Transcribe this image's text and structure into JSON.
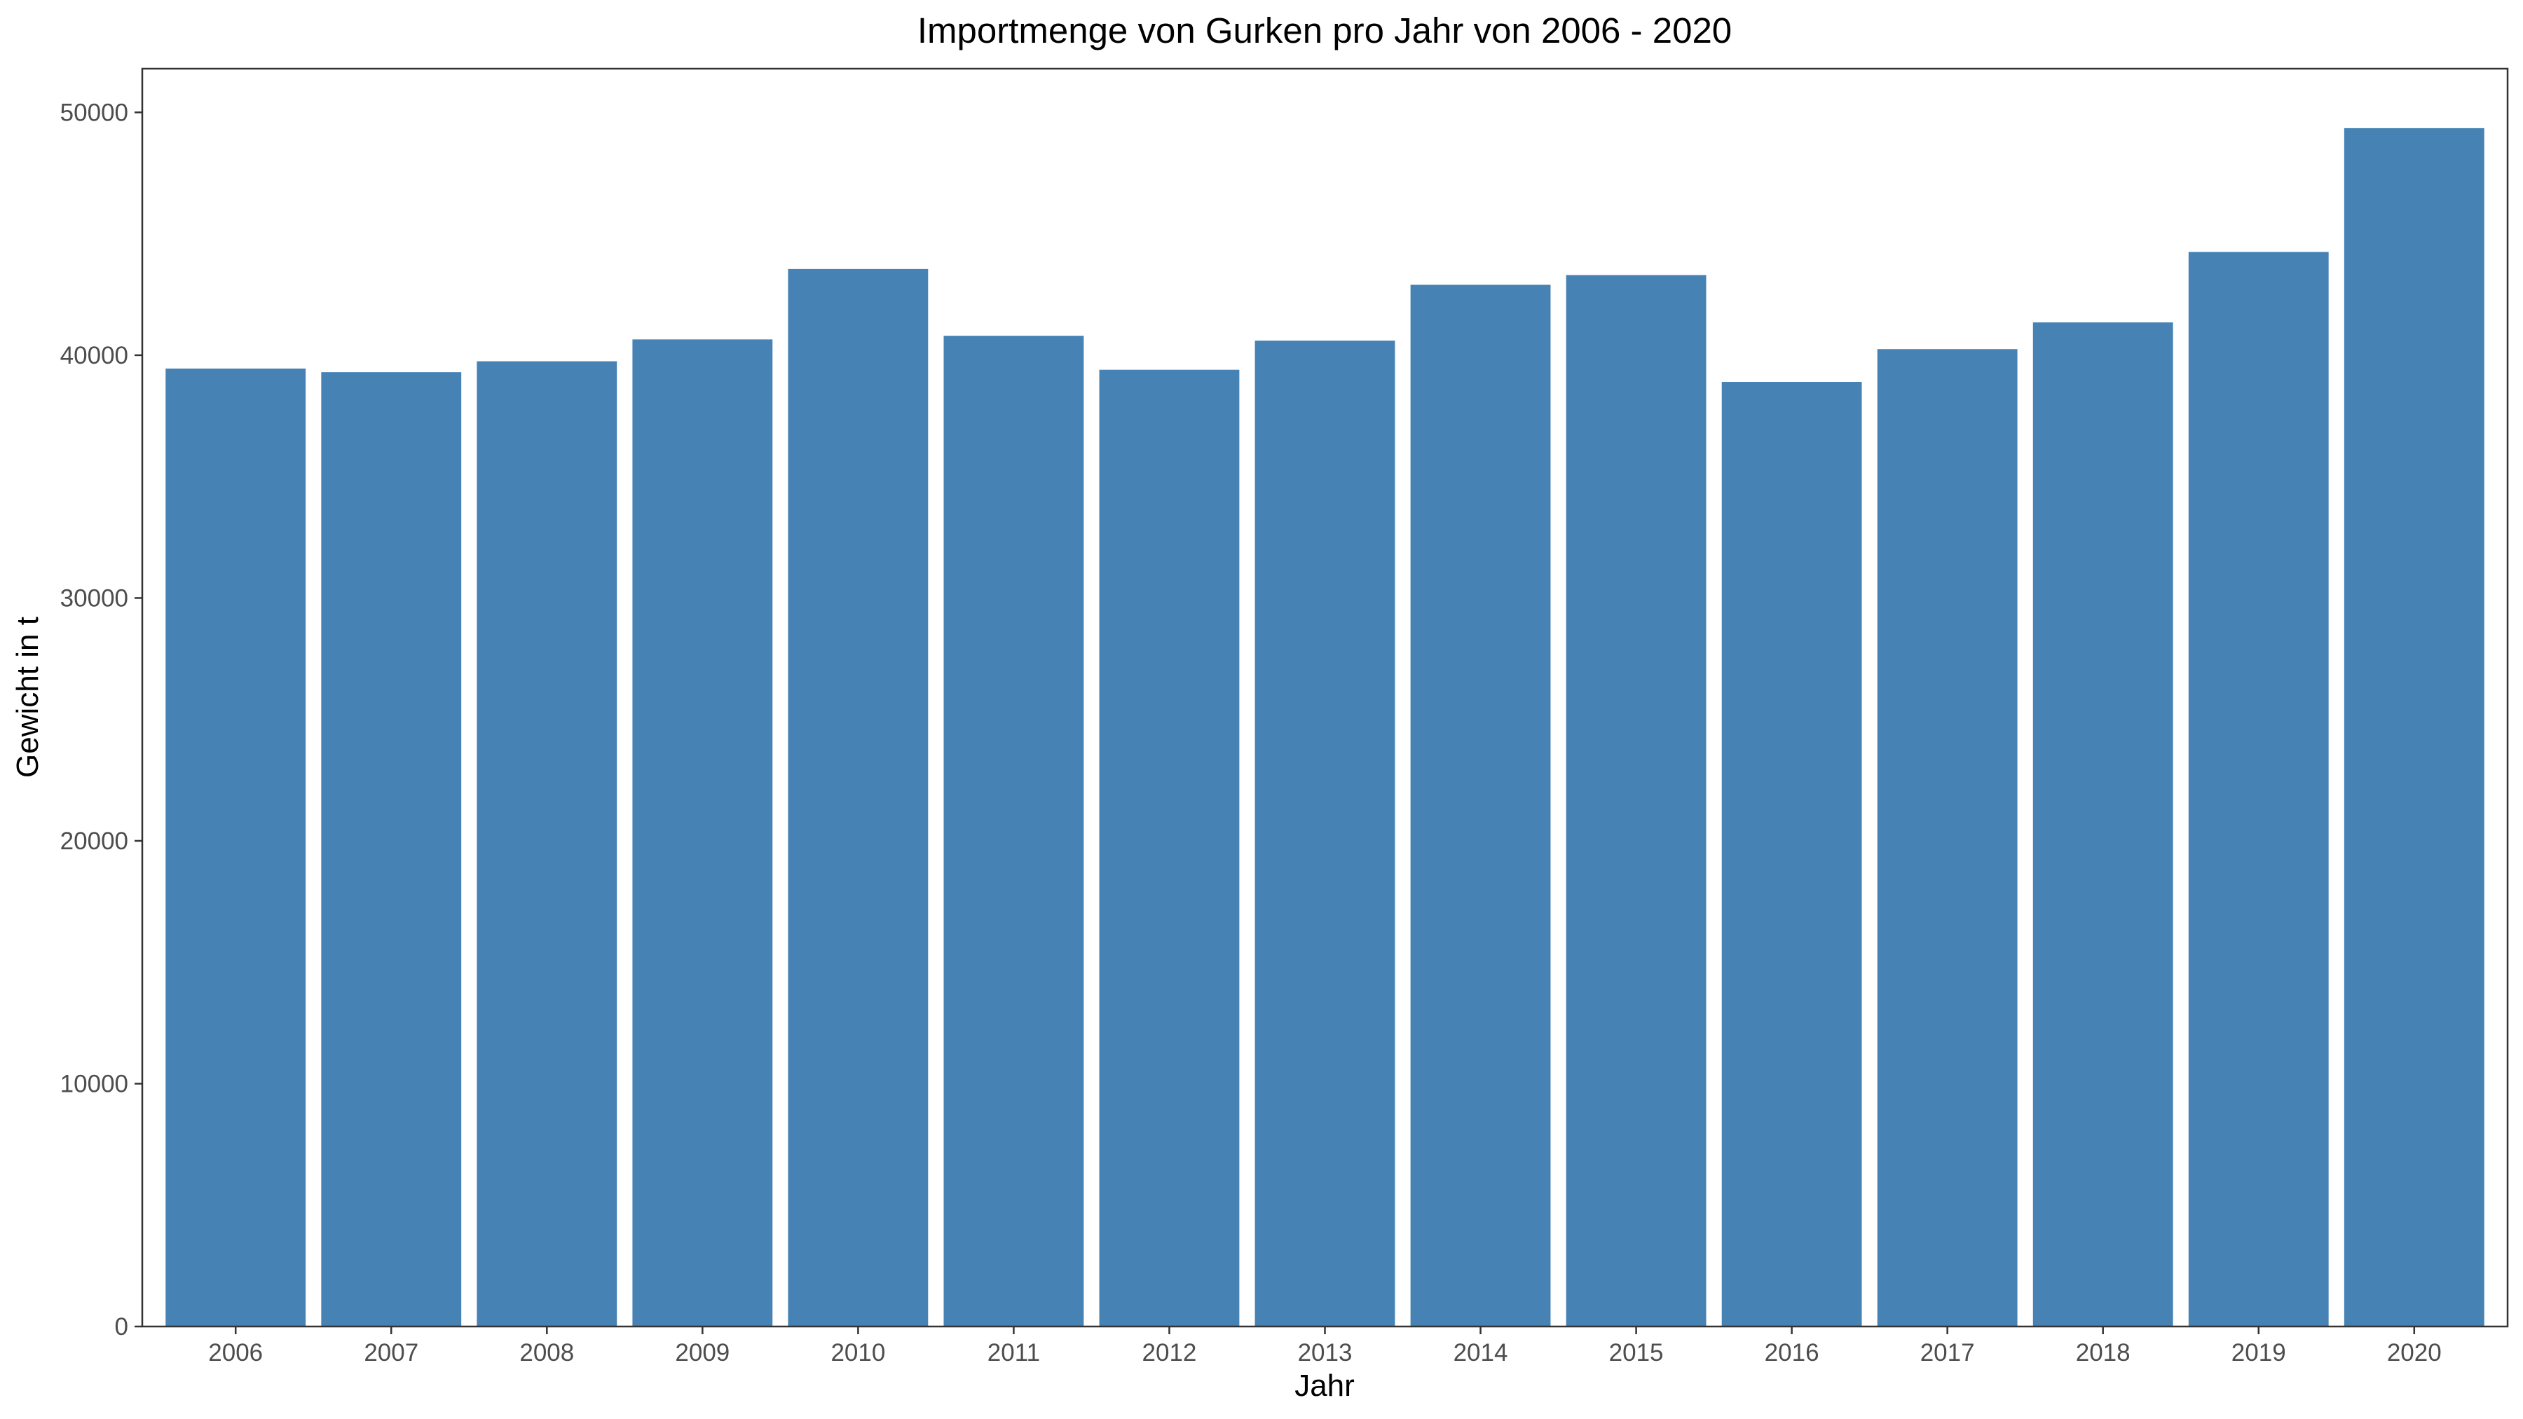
{
  "chart_data": {
    "type": "bar",
    "title": "Importmenge von Gurken pro Jahr von 2006 - 2020",
    "xlabel": "Jahr",
    "ylabel": "Gewicht in t",
    "categories": [
      "2006",
      "2007",
      "2008",
      "2009",
      "2010",
      "2011",
      "2012",
      "2013",
      "2014",
      "2015",
      "2016",
      "2017",
      "2018",
      "2019",
      "2020"
    ],
    "values": [
      39450,
      39300,
      39750,
      40650,
      43550,
      40800,
      39400,
      40600,
      42900,
      43300,
      38900,
      40250,
      41350,
      44250,
      49350
    ],
    "ylim": [
      0,
      51800
    ],
    "yticks": [
      0,
      10000,
      20000,
      30000,
      40000,
      50000
    ],
    "ytick_labels": [
      "0",
      "10000",
      "20000",
      "30000",
      "40000",
      "50000"
    ],
    "bar_color": "#4682b4",
    "grid": false,
    "legend": "none"
  }
}
